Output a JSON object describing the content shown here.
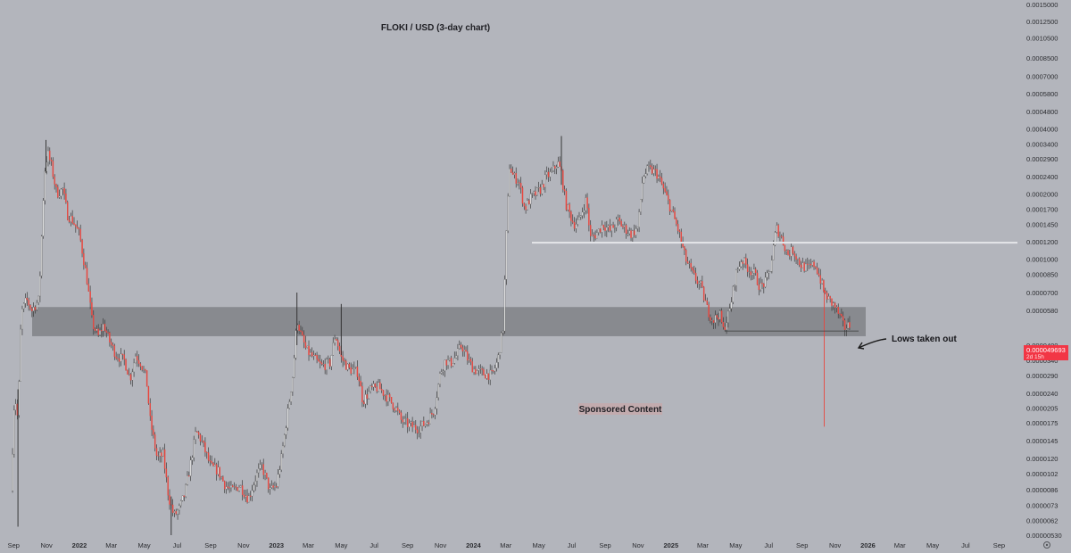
{
  "chart_data": {
    "type": "candlestick",
    "title": "FLOKI / USD (3-day chart)",
    "sponsored_label": "Sponsored Content",
    "annotation": "Lows taken out",
    "price_tag": {
      "value": "0.000049693",
      "countdown": "2d 15h"
    },
    "log_scale": true,
    "colors": {
      "background": "#b3b5bc",
      "up": "#ffffff",
      "down": "#e8473f",
      "wick": "#3c3c3c",
      "zone": "#6e7074",
      "price_tag": "#f23645",
      "resistance_line": "#e2e3e6"
    },
    "y_ticks": [
      "0.00000530",
      "0.0000062",
      "0.0000073",
      "0.0000086",
      "0.0000102",
      "0.0000120",
      "0.0000145",
      "0.0000175",
      "0.0000205",
      "0.0000240",
      "0.0000290",
      "0.0000340",
      "0.0000400",
      "0.0000580",
      "0.0000700",
      "0.0000850",
      "0.0001000",
      "0.0001200",
      "0.0001450",
      "0.0001700",
      "0.0002000",
      "0.0002400",
      "0.0002900",
      "0.0003400",
      "0.0004000",
      "0.0004800",
      "0.0005800",
      "0.0007000",
      "0.0008500",
      "0.0010500",
      "0.0012500",
      "0.0015000"
    ],
    "x_ticks": [
      "Sep",
      "Nov",
      "2022",
      "Mar",
      "May",
      "Jul",
      "Sep",
      "Nov",
      "2023",
      "Mar",
      "May",
      "Jul",
      "Sep",
      "Nov",
      "2024",
      "Mar",
      "May",
      "Jul",
      "Sep",
      "Nov",
      "2025",
      "Mar",
      "May",
      "Jul",
      "Sep",
      "Nov",
      "2026",
      "Mar",
      "May",
      "Jul",
      "Sep"
    ],
    "x_start": "2021-08-20",
    "x_end": "2026-10-05",
    "support_zone": {
      "low": 4.4e-05,
      "high": 6e-05
    },
    "resistance_level": 0.000119,
    "lows_line": 4.65e-05,
    "price_path": [
      [
        "2021-08-27",
        8.5e-06
      ],
      [
        "2021-09-03",
        2.4e-05
      ],
      [
        "2021-09-09",
        1.8e-05
      ],
      [
        "2021-09-15",
        5.6e-05
      ],
      [
        "2021-09-25",
        6.5e-05
      ],
      [
        "2021-10-05",
        5.8e-05
      ],
      [
        "2021-10-18",
        6.5e-05
      ],
      [
        "2021-10-28",
        0.00025
      ],
      [
        "2021-11-03",
        0.00031
      ],
      [
        "2021-11-10",
        0.00027
      ],
      [
        "2021-11-20",
        0.0002
      ],
      [
        "2021-12-01",
        0.00021
      ],
      [
        "2021-12-10",
        0.00016
      ],
      [
        "2021-12-20",
        0.00015
      ],
      [
        "2022-01-01",
        0.00013
      ],
      [
        "2022-01-15",
        8e-05
      ],
      [
        "2022-01-25",
        5e-05
      ],
      [
        "2022-02-05",
        4.4e-05
      ],
      [
        "2022-02-15",
        5e-05
      ],
      [
        "2022-02-25",
        4.2e-05
      ],
      [
        "2022-03-10",
        3.6e-05
      ],
      [
        "2022-03-25",
        3.4e-05
      ],
      [
        "2022-04-05",
        2.8e-05
      ],
      [
        "2022-04-15",
        3.6e-05
      ],
      [
        "2022-04-25",
        3.3e-05
      ],
      [
        "2022-05-05",
        2.8e-05
      ],
      [
        "2022-05-12",
        1.8e-05
      ],
      [
        "2022-05-25",
        1.2e-05
      ],
      [
        "2022-06-05",
        1.25e-05
      ],
      [
        "2022-06-15",
        8e-06
      ],
      [
        "2022-06-25",
        6.5e-06
      ],
      [
        "2022-07-05",
        7e-06
      ],
      [
        "2022-07-15",
        8.2e-06
      ],
      [
        "2022-07-25",
        1.1e-05
      ],
      [
        "2022-08-05",
        1.6e-05
      ],
      [
        "2022-08-15",
        1.45e-05
      ],
      [
        "2022-09-01",
        1.1e-05
      ],
      [
        "2022-09-15",
        1.05e-05
      ],
      [
        "2022-09-28",
        9e-06
      ],
      [
        "2022-10-10",
        8.5e-06
      ],
      [
        "2022-10-25",
        9e-06
      ],
      [
        "2022-11-10",
        7.8e-06
      ],
      [
        "2022-11-25",
        1e-05
      ],
      [
        "2022-12-05",
        1.1e-05
      ],
      [
        "2022-12-20",
        8.5e-06
      ],
      [
        "2023-01-01",
        9e-06
      ],
      [
        "2023-01-10",
        1.2e-05
      ],
      [
        "2023-01-20",
        1.8e-05
      ],
      [
        "2023-02-01",
        3e-05
      ],
      [
        "2023-02-08",
        5.3e-05
      ],
      [
        "2023-02-15",
        4.5e-05
      ],
      [
        "2023-02-25",
        3.8e-05
      ],
      [
        "2023-03-10",
        3.5e-05
      ],
      [
        "2023-03-25",
        3.2e-05
      ],
      [
        "2023-04-10",
        3.3e-05
      ],
      [
        "2023-04-20",
        4.5e-05
      ],
      [
        "2023-05-01",
        3.5e-05
      ],
      [
        "2023-05-15",
        3.1e-05
      ],
      [
        "2023-06-01",
        3e-05
      ],
      [
        "2023-06-10",
        2.2e-05
      ],
      [
        "2023-06-25",
        2.5e-05
      ],
      [
        "2023-07-10",
        2.55e-05
      ],
      [
        "2023-07-25",
        2.3e-05
      ],
      [
        "2023-08-10",
        2.05e-05
      ],
      [
        "2023-08-20",
        1.8e-05
      ],
      [
        "2023-09-05",
        1.7e-05
      ],
      [
        "2023-09-20",
        1.65e-05
      ],
      [
        "2023-10-05",
        1.75e-05
      ],
      [
        "2023-10-20",
        2e-05
      ],
      [
        "2023-11-01",
        3e-05
      ],
      [
        "2023-11-10",
        3.4e-05
      ],
      [
        "2023-11-20",
        3.3e-05
      ],
      [
        "2023-12-01",
        3.6e-05
      ],
      [
        "2023-12-10",
        4e-05
      ],
      [
        "2023-12-20",
        3.5e-05
      ],
      [
        "2024-01-01",
        3.1e-05
      ],
      [
        "2024-01-20",
        2.95e-05
      ],
      [
        "2024-02-05",
        2.9e-05
      ],
      [
        "2024-02-15",
        3.4e-05
      ],
      [
        "2024-02-25",
        4.8e-05
      ],
      [
        "2024-03-02",
        0.00013
      ],
      [
        "2024-03-08",
        0.00027
      ],
      [
        "2024-03-15",
        0.00024
      ],
      [
        "2024-03-25",
        0.00023
      ],
      [
        "2024-04-05",
        0.00017
      ],
      [
        "2024-04-15",
        0.00019
      ],
      [
        "2024-04-25",
        0.0002
      ],
      [
        "2024-05-05",
        0.00021
      ],
      [
        "2024-05-15",
        0.00024
      ],
      [
        "2024-05-25",
        0.00025
      ],
      [
        "2024-06-05",
        0.00028
      ],
      [
        "2024-06-12",
        0.00025
      ],
      [
        "2024-06-20",
        0.00018
      ],
      [
        "2024-07-05",
        0.000145
      ],
      [
        "2024-07-15",
        0.00015
      ],
      [
        "2024-07-28",
        0.00019
      ],
      [
        "2024-08-05",
        0.000125
      ],
      [
        "2024-08-15",
        0.00013
      ],
      [
        "2024-08-28",
        0.000145
      ],
      [
        "2024-09-10",
        0.000135
      ],
      [
        "2024-09-25",
        0.00015
      ],
      [
        "2024-10-05",
        0.00014
      ],
      [
        "2024-10-20",
        0.00013
      ],
      [
        "2024-11-01",
        0.00014
      ],
      [
        "2024-11-10",
        0.00024
      ],
      [
        "2024-11-20",
        0.00026
      ],
      [
        "2024-12-05",
        0.00025
      ],
      [
        "2024-12-15",
        0.00022
      ],
      [
        "2025-01-01",
        0.00017
      ],
      [
        "2025-01-15",
        0.000135
      ],
      [
        "2025-01-28",
        0.0001
      ],
      [
        "2025-02-10",
        8.5e-05
      ],
      [
        "2025-02-25",
        7.5e-05
      ],
      [
        "2025-03-10",
        5.8e-05
      ],
      [
        "2025-03-20",
        5.2e-05
      ],
      [
        "2025-04-01",
        5.6e-05
      ],
      [
        "2025-04-08",
        4.7e-05
      ],
      [
        "2025-04-20",
        5.8e-05
      ],
      [
        "2025-05-01",
        8.5e-05
      ],
      [
        "2025-05-12",
        0.0001
      ],
      [
        "2025-05-25",
        9e-05
      ],
      [
        "2025-06-05",
        8.5e-05
      ],
      [
        "2025-06-15",
        7.4e-05
      ],
      [
        "2025-06-25",
        7.8e-05
      ],
      [
        "2025-07-05",
        9.2e-05
      ],
      [
        "2025-07-15",
        0.00014
      ],
      [
        "2025-07-25",
        0.000125
      ],
      [
        "2025-08-05",
        0.000105
      ],
      [
        "2025-08-15",
        0.00011
      ],
      [
        "2025-08-28",
        9.5e-05
      ],
      [
        "2025-09-10",
        9e-05
      ],
      [
        "2025-09-25",
        9.5e-05
      ],
      [
        "2025-10-05",
        8e-05
      ],
      [
        "2025-10-12",
        7e-05
      ],
      [
        "2025-10-20",
        6.5e-05
      ],
      [
        "2025-11-01",
        6e-05
      ],
      [
        "2025-11-10",
        5.4e-05
      ],
      [
        "2025-11-18",
        4.8e-05
      ],
      [
        "2025-11-28",
        4.97e-05
      ]
    ]
  }
}
